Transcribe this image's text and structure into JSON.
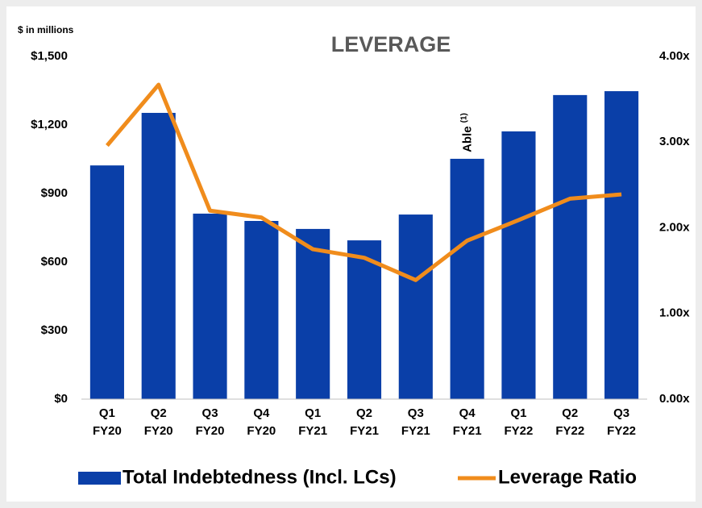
{
  "chart_data": {
    "type": "bar",
    "title": "LEVERAGE",
    "y_axis_label": "$ in millions",
    "categories": [
      "Q1 FY20",
      "Q2 FY20",
      "Q3 FY20",
      "Q4 FY20",
      "Q1 FY21",
      "Q2 FY21",
      "Q3 FY21",
      "Q4 FY21",
      "Q1 FY22",
      "Q2 FY22",
      "Q3 FY22"
    ],
    "series": [
      {
        "name": "Total Indebtedness (Incl. LCs)",
        "type": "bar",
        "color": "#0a3fa8",
        "values": [
          1023,
          1253,
          812,
          780,
          745,
          695,
          808,
          1052,
          1172,
          1331,
          1348
        ]
      },
      {
        "name": "Leverage Ratio",
        "type": "line",
        "axis": "y2",
        "color": "#f08c1c",
        "values": [
          2.96,
          3.67,
          2.2,
          2.12,
          1.75,
          1.65,
          1.39,
          1.85,
          2.09,
          2.34,
          2.39
        ]
      }
    ],
    "ylim": [
      0,
      1500
    ],
    "yticks": [
      {
        "value": 0,
        "label": "$0"
      },
      {
        "value": 300,
        "label": "$300"
      },
      {
        "value": 600,
        "label": "$600"
      },
      {
        "value": 900,
        "label": "$900"
      },
      {
        "value": 1200,
        "label": "$1,200"
      },
      {
        "value": 1500,
        "label": "$1,500"
      }
    ],
    "y2lim": [
      0,
      4
    ],
    "y2ticks": [
      {
        "value": 0,
        "label": "0.00x"
      },
      {
        "value": 1,
        "label": "1.00x"
      },
      {
        "value": 2,
        "label": "2.00x"
      },
      {
        "value": 3,
        "label": "3.00x"
      },
      {
        "value": 4,
        "label": "4.00x"
      }
    ],
    "annotation": {
      "category": 7,
      "text": "Able",
      "note": "(1)"
    },
    "legend": "bottom"
  }
}
